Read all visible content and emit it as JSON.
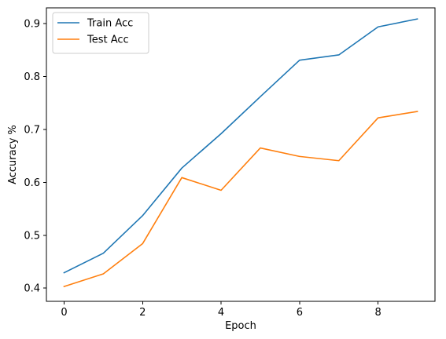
{
  "chart_data": {
    "type": "line",
    "title": "",
    "xlabel": "Epoch",
    "ylabel": "Accuracy %",
    "x": [
      0,
      1,
      2,
      3,
      4,
      5,
      6,
      7,
      8,
      9
    ],
    "xlim": [
      -0.45,
      9.45
    ],
    "ylim": [
      0.375,
      0.93
    ],
    "xticks": [
      0,
      2,
      4,
      6,
      8
    ],
    "yticks": [
      0.4,
      0.5,
      0.6,
      0.7,
      0.8,
      0.9
    ],
    "xtick_labels": [
      "0",
      "2",
      "4",
      "6",
      "8"
    ],
    "ytick_labels": [
      "0.4",
      "0.5",
      "0.6",
      "0.7",
      "0.8",
      "0.9"
    ],
    "grid": false,
    "legend_position": "top-left",
    "series": [
      {
        "name": "Train Acc",
        "color": "#1f77b4",
        "values": [
          0.429,
          0.466,
          0.537,
          0.627,
          0.692,
          0.762,
          0.831,
          0.841,
          0.894,
          0.909
        ]
      },
      {
        "name": "Test Acc",
        "color": "#ff7f0e",
        "values": [
          0.403,
          0.427,
          0.484,
          0.609,
          0.585,
          0.665,
          0.649,
          0.641,
          0.722,
          0.734
        ]
      }
    ]
  }
}
